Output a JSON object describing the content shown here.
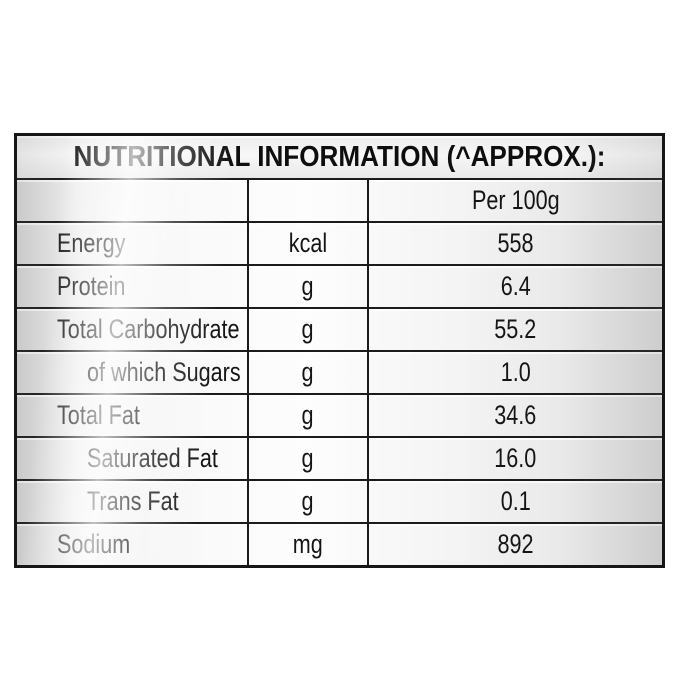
{
  "table": {
    "title": "NUTRITIONAL INFORMATION (^APPROX.):",
    "header": {
      "label_column": "",
      "unit_column": "",
      "value_column": "Per 100g"
    },
    "rows": [
      {
        "label": "Energy",
        "unit": "kcal",
        "value": "558",
        "indent": 0
      },
      {
        "label": "Protein",
        "unit": "g",
        "value": "6.4",
        "indent": 0
      },
      {
        "label": "Total Carbohydrate",
        "unit": "g",
        "value": "55.2",
        "indent": 0
      },
      {
        "label": "of which Sugars",
        "unit": "g",
        "value": "1.0",
        "indent": 1
      },
      {
        "label": "Total Fat",
        "unit": "g",
        "value": "34.6",
        "indent": 0
      },
      {
        "label": "Saturated Fat",
        "unit": "g",
        "value": "16.0",
        "indent": 1
      },
      {
        "label": "Trans Fat",
        "unit": "g",
        "value": "0.1",
        "indent": 1
      },
      {
        "label": "Sodium",
        "unit": "mg",
        "value": "892",
        "indent": 0
      }
    ]
  },
  "colors": {
    "border": "#161616",
    "text": "#151515",
    "background": "#ffffff",
    "cell_sheen": "#f4f4f4"
  }
}
